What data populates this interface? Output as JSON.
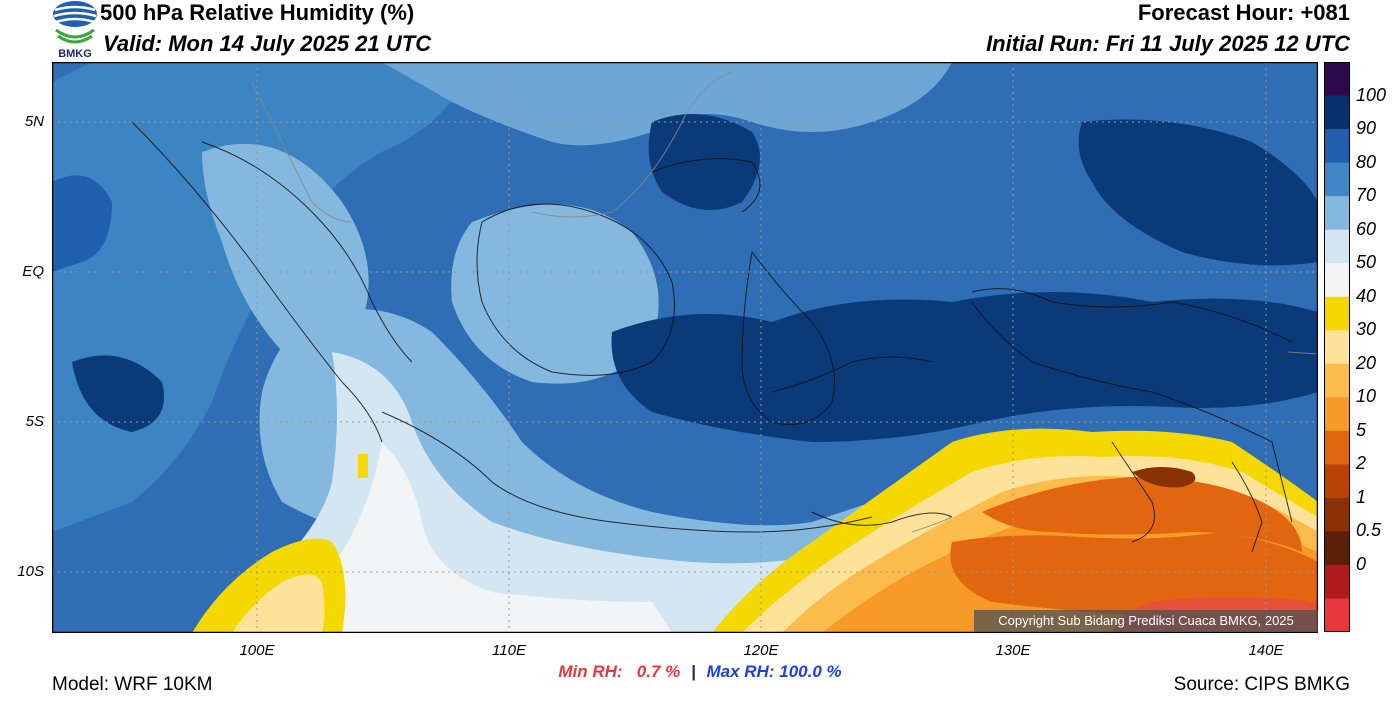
{
  "header": {
    "title": "500 hPa Relative Humidity (%)",
    "valid": "Valid: Mon 14 July 2025 21 UTC",
    "forecast_hour": "Forecast Hour: +081",
    "initial_run": "Initial Run: Fri 11 July 2025 12 UTC",
    "logo_text": "BMKG"
  },
  "map": {
    "lat_ticks": [
      "5N",
      "EQ",
      "5S",
      "10S"
    ],
    "lon_ticks": [
      "100E",
      "110E",
      "120E",
      "130E",
      "140E"
    ],
    "copyright": "Copyright Sub Bidang Prediksi Cuaca BMKG, 2025"
  },
  "colorbar": {
    "labels": [
      "100",
      "90",
      "80",
      "70",
      "60",
      "50",
      "40",
      "30",
      "20",
      "10",
      "5",
      "2",
      "1",
      "0.5",
      "0"
    ],
    "colors": [
      "#2d0a4e",
      "#08306b",
      "#1f5fae",
      "#3f86c4",
      "#84b8de",
      "#d4e6f2",
      "#f5f5f5",
      "#f5d800",
      "#fde29a",
      "#fcbc4c",
      "#f89a28",
      "#e2650f",
      "#b84208",
      "#8a3005",
      "#5c1f08",
      "#b01a1a",
      "#e8383d"
    ]
  },
  "stats": {
    "min_label": "Min RH:",
    "min_value": "0.7 %",
    "separator": "|",
    "max_label": "Max RH:",
    "max_value": "100.0 %"
  },
  "footer": {
    "model": "Model: WRF 10KM",
    "source": "Source: CIPS BMKG"
  }
}
